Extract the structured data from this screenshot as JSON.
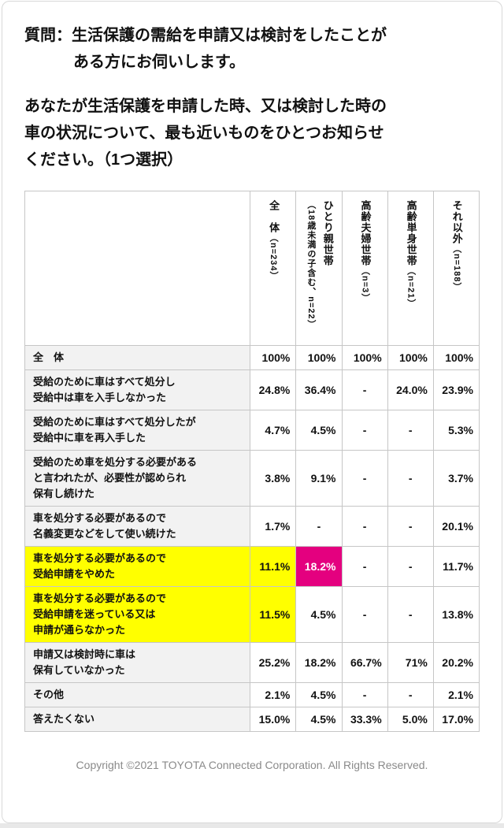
{
  "question": {
    "line1": "質問：生活保護の需給を申請又は検討をしたことが",
    "line2": "ある方にお伺いします。",
    "body_line1": "あなたが生活保護を申請した時、又は検討した時の",
    "body_line2": "車の状況について、最も近いものをひとつお知らせ",
    "body_line3": "ください。（1つ選択）"
  },
  "table": {
    "columns": [
      {
        "main": "全　体",
        "sub": "（n=234）",
        "wrap": false
      },
      {
        "main": "ひとり親世帯",
        "sub": "（18歳未満の子含む、n=22）",
        "wrap": true
      },
      {
        "main": "高齢夫婦世帯",
        "sub": "（n=3）",
        "wrap": false
      },
      {
        "main": "高齢単身世帯",
        "sub": "（n=21）",
        "wrap": false
      },
      {
        "main": "それ以外",
        "sub": "（n=188）",
        "wrap": false
      }
    ],
    "rows": [
      {
        "label": "全　体",
        "values": [
          "100%",
          "100%",
          "100%",
          "100%",
          "100%"
        ]
      },
      {
        "label": "受給のために車はすべて処分し\n受給中は車を入手しなかった",
        "values": [
          "24.8%",
          "36.4%",
          "-",
          "24.0%",
          "23.9%"
        ]
      },
      {
        "label": "受給のために車はすべて処分したが\n受給中に車を再入手した",
        "values": [
          "4.7%",
          "4.5%",
          "-",
          "-",
          "5.3%"
        ]
      },
      {
        "label": "受給のため車を処分する必要がある\nと言われたが、必要性が認められ\n保有し続けた",
        "values": [
          "3.8%",
          "9.1%",
          "-",
          "-",
          "3.7%"
        ]
      },
      {
        "label": "車を処分する必要があるので\n名義変更などをして使い続けた",
        "values": [
          "1.7%",
          "-",
          "-",
          "-",
          "20.1%"
        ]
      },
      {
        "label": "車を処分する必要があるので\n受給申請をやめた",
        "values": [
          "11.1%",
          "18.2%",
          "-",
          "-",
          "11.7%"
        ],
        "label_highlight": "yellow",
        "value_highlights": [
          "yellow",
          "magenta",
          null,
          null,
          null
        ]
      },
      {
        "label": "車を処分する必要があるので\n受給申請を迷っている又は\n申請が通らなかった",
        "values": [
          "11.5%",
          "4.5%",
          "-",
          "-",
          "13.8%"
        ],
        "label_highlight": "yellow",
        "value_highlights": [
          "yellow",
          null,
          null,
          null,
          null
        ]
      },
      {
        "label": "申請又は検討時に車は\n保有していなかった",
        "values": [
          "25.2%",
          "18.2%",
          "66.7%",
          "71%",
          "20.2%"
        ]
      },
      {
        "label": "その他",
        "values": [
          "2.1%",
          "4.5%",
          "-",
          "-",
          "2.1%"
        ]
      },
      {
        "label": "答えたくない",
        "values": [
          "15.0%",
          "4.5%",
          "33.3%",
          "5.0%",
          "17.0%"
        ]
      }
    ]
  },
  "footer": {
    "copyright": "Copyright ©2021 TOYOTA Connected Corporation. All Rights Reserved."
  },
  "colors": {
    "highlight_yellow": "#ffff00",
    "highlight_magenta": "#e4007f",
    "magenta_text": "#ffffff",
    "label_cell_bg": "#f2f2f2",
    "cell_border": "#c6c6c6",
    "footer_text": "#8a8a8a"
  }
}
